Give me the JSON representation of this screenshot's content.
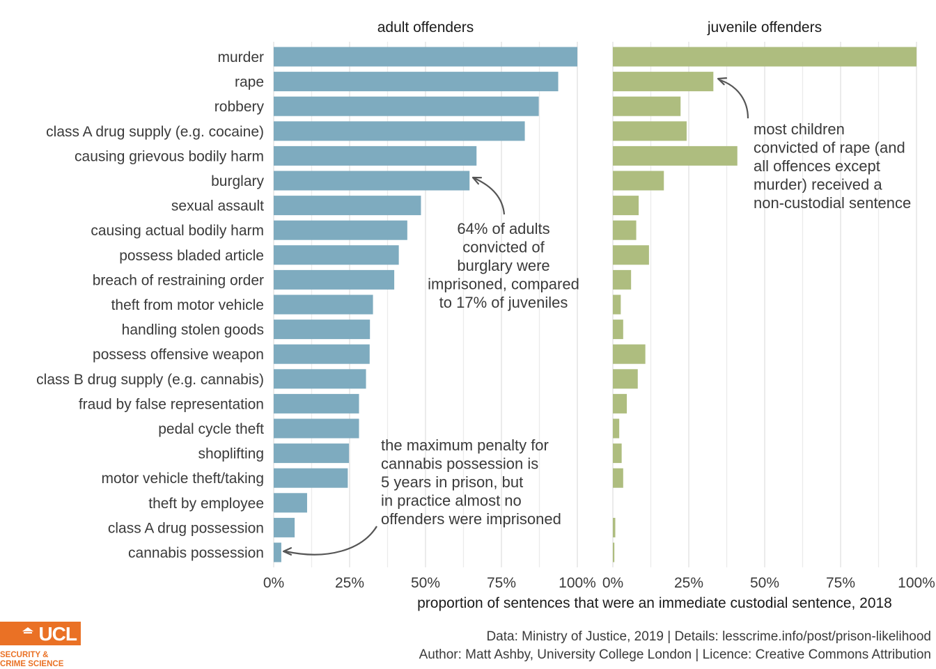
{
  "chart_data": {
    "type": "bar",
    "orientation": "horizontal",
    "categories": [
      "murder",
      "rape",
      "robbery",
      "class A drug supply (e.g. cocaine)",
      "causing grievous bodily harm",
      "burglary",
      "sexual assault",
      "causing actual bodily harm",
      "possess bladed article",
      "breach of restraining order",
      "theft from motor vehicle",
      "handling stolen goods",
      "possess offensive weapon",
      "class B drug supply (e.g. cannabis)",
      "fraud by false representation",
      "pedal cycle theft",
      "shoplifting",
      "motor vehicle theft/taking",
      "theft by employee",
      "class A drug possession",
      "cannabis possession"
    ],
    "panels": [
      {
        "title": "adult offenders",
        "color": "#7eabbf",
        "values": [
          1.0,
          0.937,
          0.873,
          0.827,
          0.668,
          0.645,
          0.485,
          0.44,
          0.412,
          0.397,
          0.327,
          0.317,
          0.316,
          0.304,
          0.281,
          0.281,
          0.248,
          0.244,
          0.11,
          0.069,
          0.025
        ]
      },
      {
        "title": "juvenile offenders",
        "color": "#aebd7f",
        "values": [
          1.0,
          0.331,
          0.223,
          0.243,
          0.41,
          0.168,
          0.085,
          0.077,
          0.119,
          0.06,
          0.026,
          0.034,
          0.107,
          0.082,
          0.046,
          0.021,
          0.029,
          0.034,
          0.0,
          0.008,
          0.005
        ]
      }
    ],
    "xlim": [
      0,
      1
    ],
    "x_ticks": [
      "0%",
      "25%",
      "50%",
      "75%",
      "100%"
    ],
    "xlabel": "proportion of sentences that were an immediate custodial sentence, 2018",
    "ylabel": "",
    "grid": true,
    "annotations": [
      {
        "panel": "adult offenders",
        "target": "burglary",
        "lines": [
          "64% of adults",
          "convicted of",
          "burglary were",
          "imprisoned, compared",
          "to 17% of juveniles"
        ]
      },
      {
        "panel": "adult offenders",
        "target": "cannabis possession",
        "lines": [
          "the maximum penalty for",
          "cannabis possession is",
          "5 years in prison, but",
          "in practice almost no",
          "offenders were imprisoned"
        ]
      },
      {
        "panel": "juvenile offenders",
        "target": "rape",
        "lines": [
          "most children",
          "convicted of rape (and",
          "all offences except",
          "murder) received a",
          "non-custodial sentence"
        ]
      }
    ]
  },
  "caption": {
    "line1": "Data: Ministry of Justice, 2019 |  Details: lesscrime.info/post/prison-likelihood",
    "line2": "Author: Matt Ashby, University College London |  Licence: Creative Commons Attribution"
  },
  "logo": {
    "name": "UCL",
    "subtitle_line1": "SECURITY &",
    "subtitle_line2": "CRIME SCIENCE",
    "color": "#ea7125"
  }
}
